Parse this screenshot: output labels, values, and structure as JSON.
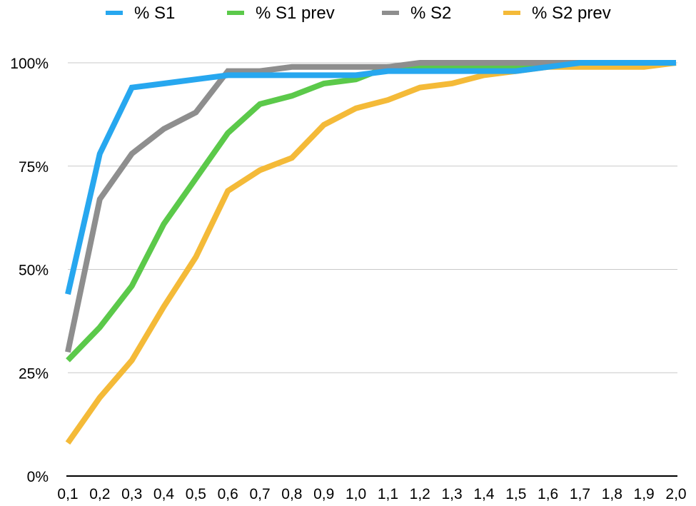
{
  "chart_data": {
    "type": "line",
    "title": "",
    "xlabel": "",
    "ylabel": "",
    "legend_position": "top",
    "grid": true,
    "x": [
      "0,1",
      "0,2",
      "0,3",
      "0,4",
      "0,5",
      "0,6",
      "0,7",
      "0,8",
      "0,9",
      "1,0",
      "1,1",
      "1,2",
      "1,3",
      "1,4",
      "1,5",
      "1,6",
      "1,7",
      "1,8",
      "1,9",
      "2,0"
    ],
    "y_ticks": [
      "0%",
      "25%",
      "50%",
      "75%",
      "100%"
    ],
    "ylim": [
      0,
      100
    ],
    "series": [
      {
        "name": "% S1",
        "color": "#27A7EF",
        "values": [
          44,
          78,
          94,
          95,
          96,
          97,
          97,
          97,
          97,
          97,
          98,
          98,
          98,
          98,
          98,
          99,
          100,
          100,
          100,
          100
        ]
      },
      {
        "name": "% S1 prev",
        "color": "#5BC94A",
        "values": [
          28,
          36,
          46,
          61,
          72,
          83,
          90,
          92,
          95,
          96,
          99,
          99,
          99,
          99,
          99,
          100,
          100,
          100,
          100,
          100
        ]
      },
      {
        "name": "% S2",
        "color": "#8E8E8E",
        "values": [
          30,
          67,
          78,
          84,
          88,
          98,
          98,
          99,
          99,
          99,
          99,
          100,
          100,
          100,
          100,
          100,
          100,
          100,
          100,
          100
        ]
      },
      {
        "name": "% S2 prev",
        "color": "#F4BA38",
        "values": [
          8,
          19,
          28,
          41,
          53,
          69,
          74,
          77,
          85,
          89,
          91,
          94,
          95,
          97,
          98,
          99,
          99,
          99,
          99,
          100
        ]
      }
    ]
  }
}
